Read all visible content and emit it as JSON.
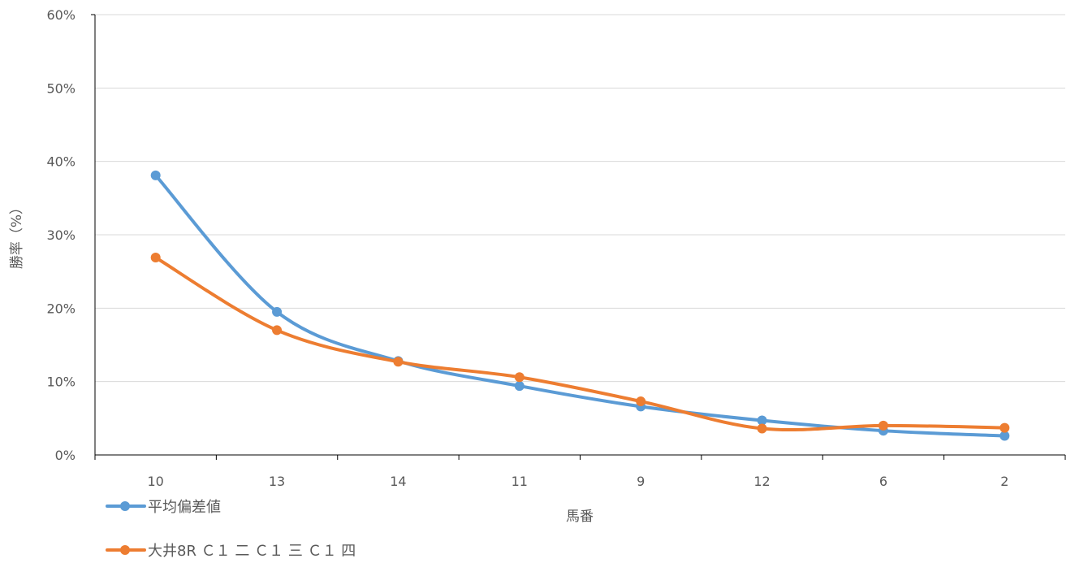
{
  "chart_data": {
    "type": "line",
    "categories": [
      "10",
      "13",
      "14",
      "11",
      "9",
      "12",
      "6",
      "2"
    ],
    "series": [
      {
        "name": "平均偏差値",
        "color": "#5B9BD5",
        "values": [
          0.381,
          0.195,
          0.128,
          0.094,
          0.066,
          0.047,
          0.033,
          0.026
        ]
      },
      {
        "name": "大井8R Ｃ１ 二 Ｃ１ 三 Ｃ１ 四",
        "color": "#ED7D31",
        "values": [
          0.269,
          0.17,
          0.127,
          0.106,
          0.073,
          0.036,
          0.04,
          0.037
        ]
      }
    ],
    "ylim": [
      0,
      0.6
    ],
    "yticks": [
      "0%",
      "10%",
      "20%",
      "30%",
      "40%",
      "50%",
      "60%"
    ],
    "ytick_values": [
      0,
      0.1,
      0.2,
      0.3,
      0.4,
      0.5,
      0.6
    ],
    "xlabel": "馬番",
    "ylabel": "勝率（%）",
    "grid": true,
    "smooth": true,
    "legend_position": "bottom-left"
  }
}
